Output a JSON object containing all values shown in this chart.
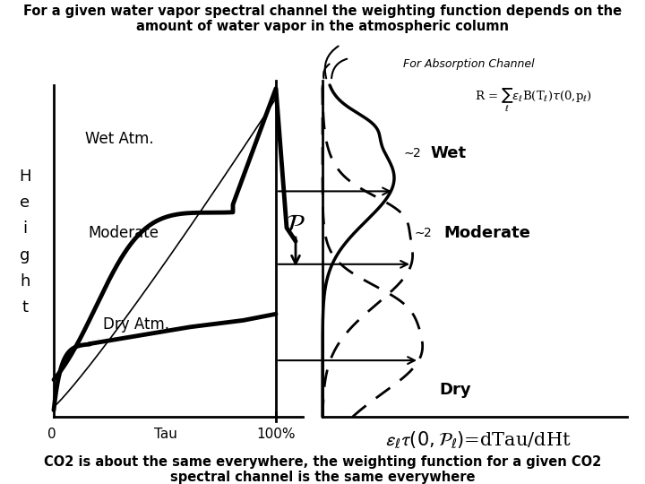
{
  "title_top": "For a given water vapor spectral channel the weighting function depends on the\namount of water vapor in the atmospheric column",
  "title_bottom": "CO2 is about the same everywhere, the weighting function for a given CO2\nspectral channel is the same everywhere",
  "ylabel": "H\ne\ni\ng\nh\nt",
  "label_tau": "Tau",
  "label_0": "0",
  "label_100": "100%",
  "label_wet_atm": "Wet Atm.",
  "label_moderate": "Moderate",
  "label_dry_atm": "Dry Atm.",
  "label_absorption": "For Absorption Channel",
  "label_wet": "Wet",
  "label_moderate2": "Moderate",
  "label_dry": "Dry",
  "bg_color": "#ffffff",
  "figsize": [
    7.2,
    5.4
  ],
  "dpi": 100
}
